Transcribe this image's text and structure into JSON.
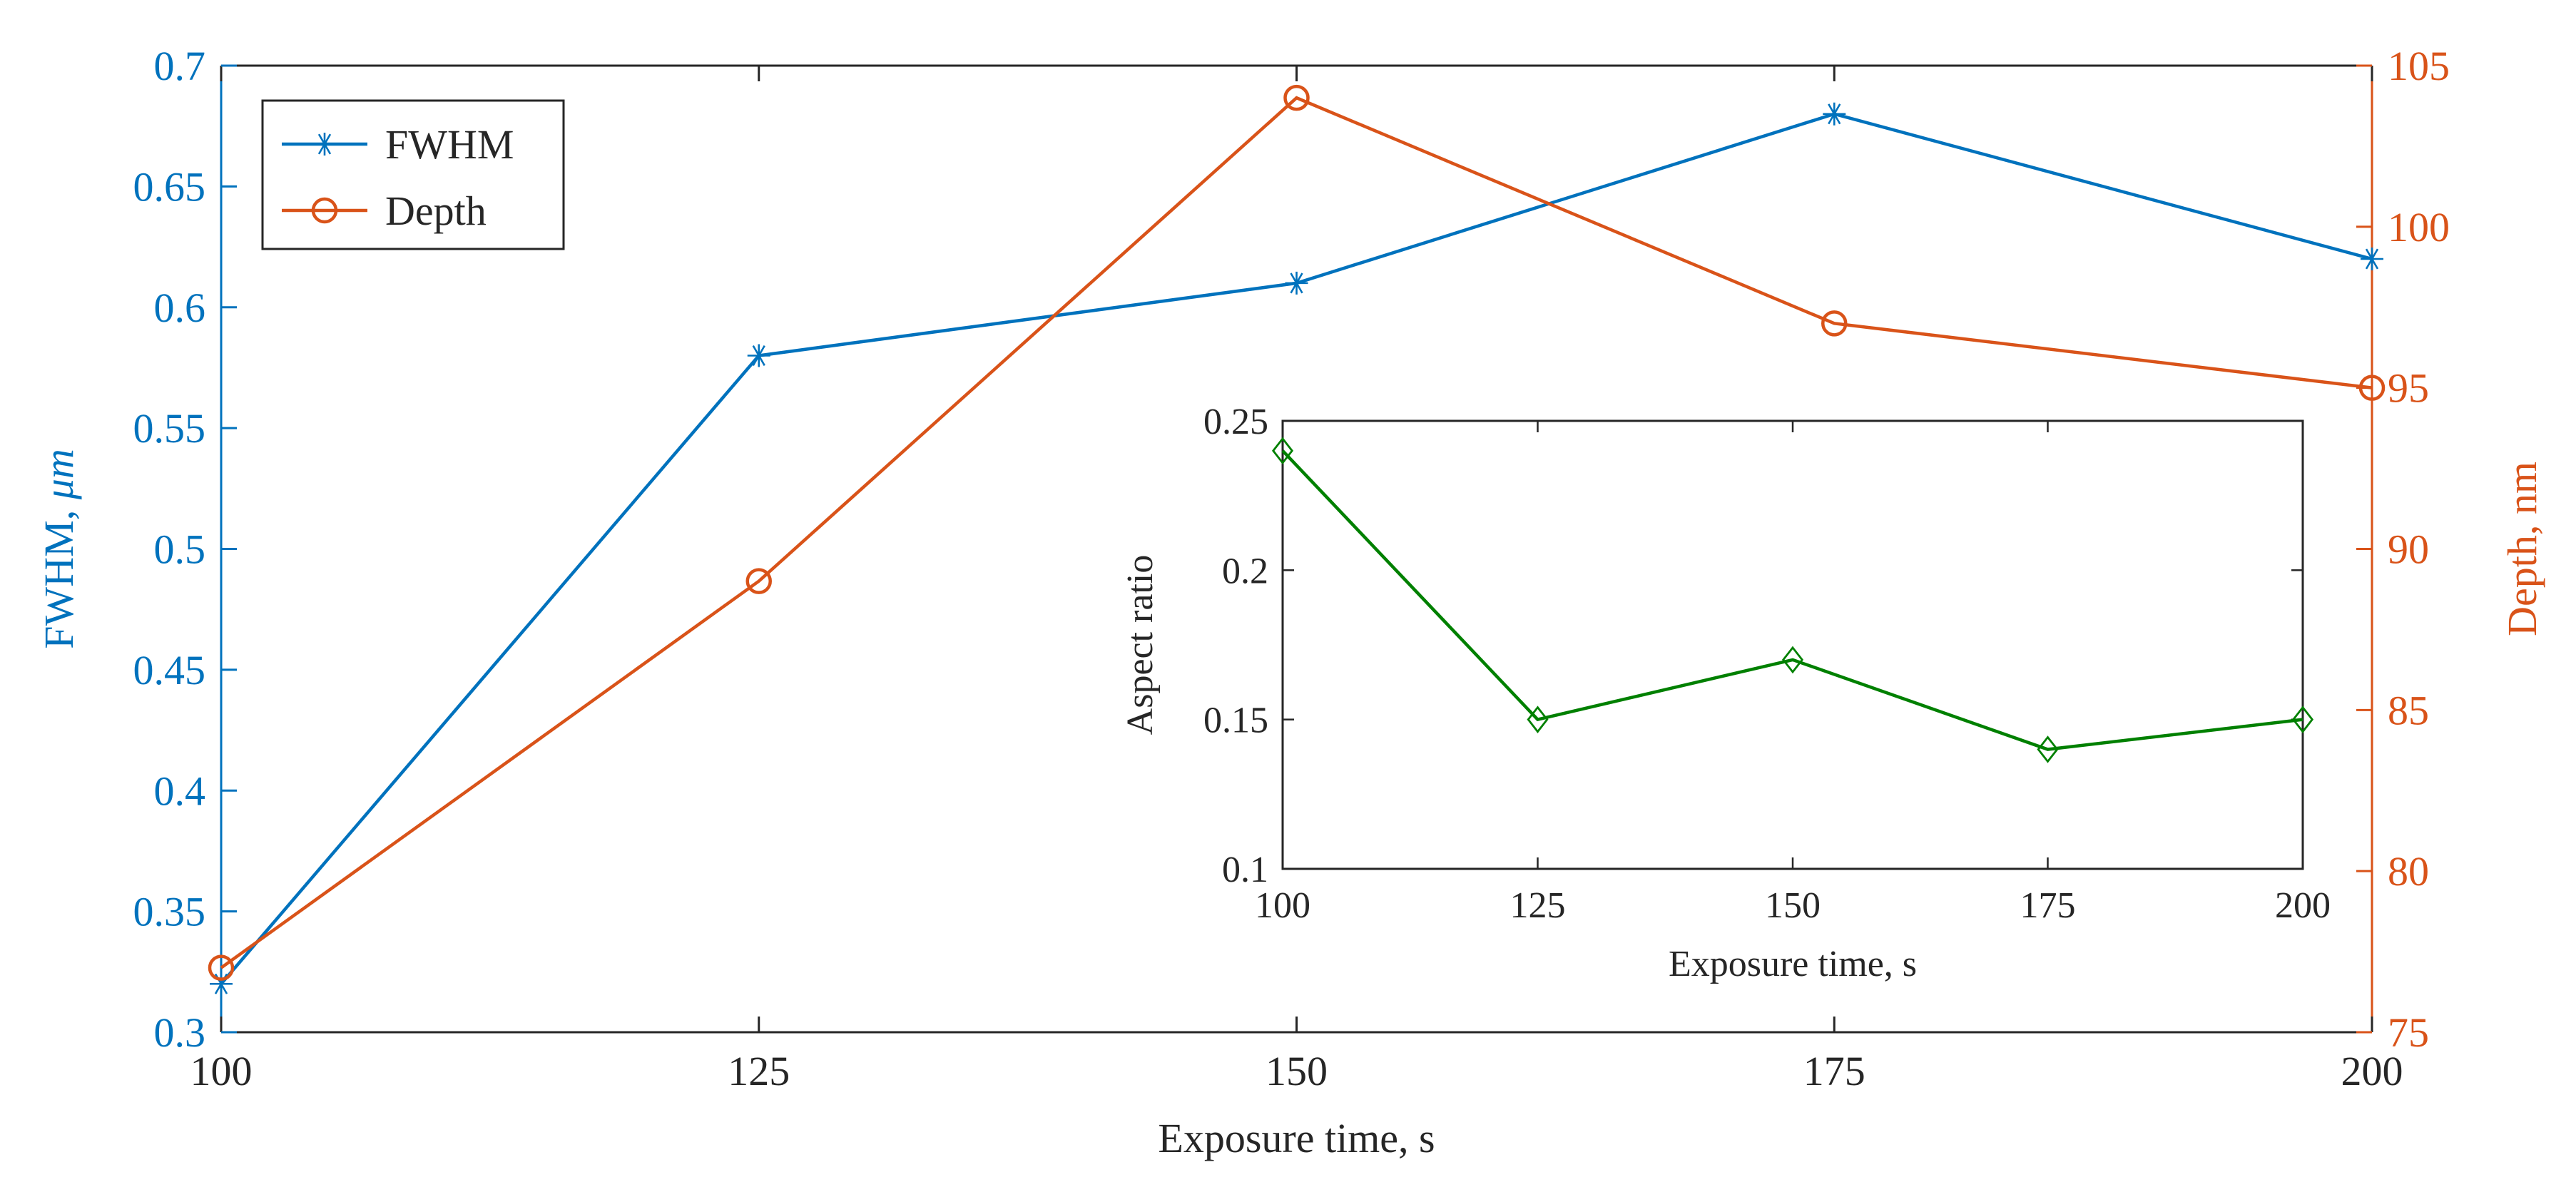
{
  "colors": {
    "fwhm": "#0072BD",
    "depth": "#D95319",
    "aspect": "#008000",
    "axis": "#262626",
    "left_axis": "#0072BD",
    "right_axis": "#D95319"
  },
  "chart_data": [
    {
      "type": "line",
      "title": "",
      "xlabel": "Exposure time, s",
      "ylabel_left": "FWHM, μm",
      "ylabel_left_prefix": "FWHM, ",
      "ylabel_left_unit": "μm",
      "ylabel_right": "Depth, nm",
      "x": [
        100,
        125,
        150,
        175,
        200
      ],
      "x_ticks": [
        "100",
        "125",
        "150",
        "175",
        "200"
      ],
      "xlim": [
        100,
        200
      ],
      "ylim_left": [
        0.3,
        0.7
      ],
      "y_ticks_left": [
        "0.3",
        "0.35",
        "0.4",
        "0.45",
        "0.5",
        "0.55",
        "0.6",
        "0.65",
        "0.7"
      ],
      "ylim_right": [
        75,
        105
      ],
      "y_ticks_right": [
        "75",
        "80",
        "85",
        "90",
        "95",
        "100",
        "105"
      ],
      "grid": false,
      "legend_position": "top-left",
      "series": [
        {
          "name": "FWHM",
          "axis": "left",
          "marker": "asterisk",
          "x": [
            100,
            125,
            150,
            175,
            200
          ],
          "values": [
            0.32,
            0.58,
            0.61,
            0.68,
            0.62
          ]
        },
        {
          "name": "Depth",
          "axis": "right",
          "marker": "circle",
          "x": [
            100,
            125,
            150,
            175,
            200
          ],
          "values": [
            77,
            89,
            104,
            97,
            95
          ]
        }
      ]
    },
    {
      "type": "line",
      "title": "",
      "xlabel": "Exposure time, s",
      "ylabel": "Aspect ratio",
      "x_ticks": [
        "100",
        "125",
        "150",
        "175",
        "200"
      ],
      "xlim": [
        100,
        200
      ],
      "ylim": [
        0.1,
        0.25
      ],
      "y_ticks": [
        "0.1",
        "0.15",
        "0.2",
        "0.25"
      ],
      "grid": false,
      "inset": true,
      "series": [
        {
          "name": "Aspect ratio",
          "marker": "diamond",
          "x": [
            100,
            125,
            150,
            175,
            200
          ],
          "values": [
            0.24,
            0.15,
            0.17,
            0.14,
            0.15
          ]
        }
      ]
    }
  ]
}
